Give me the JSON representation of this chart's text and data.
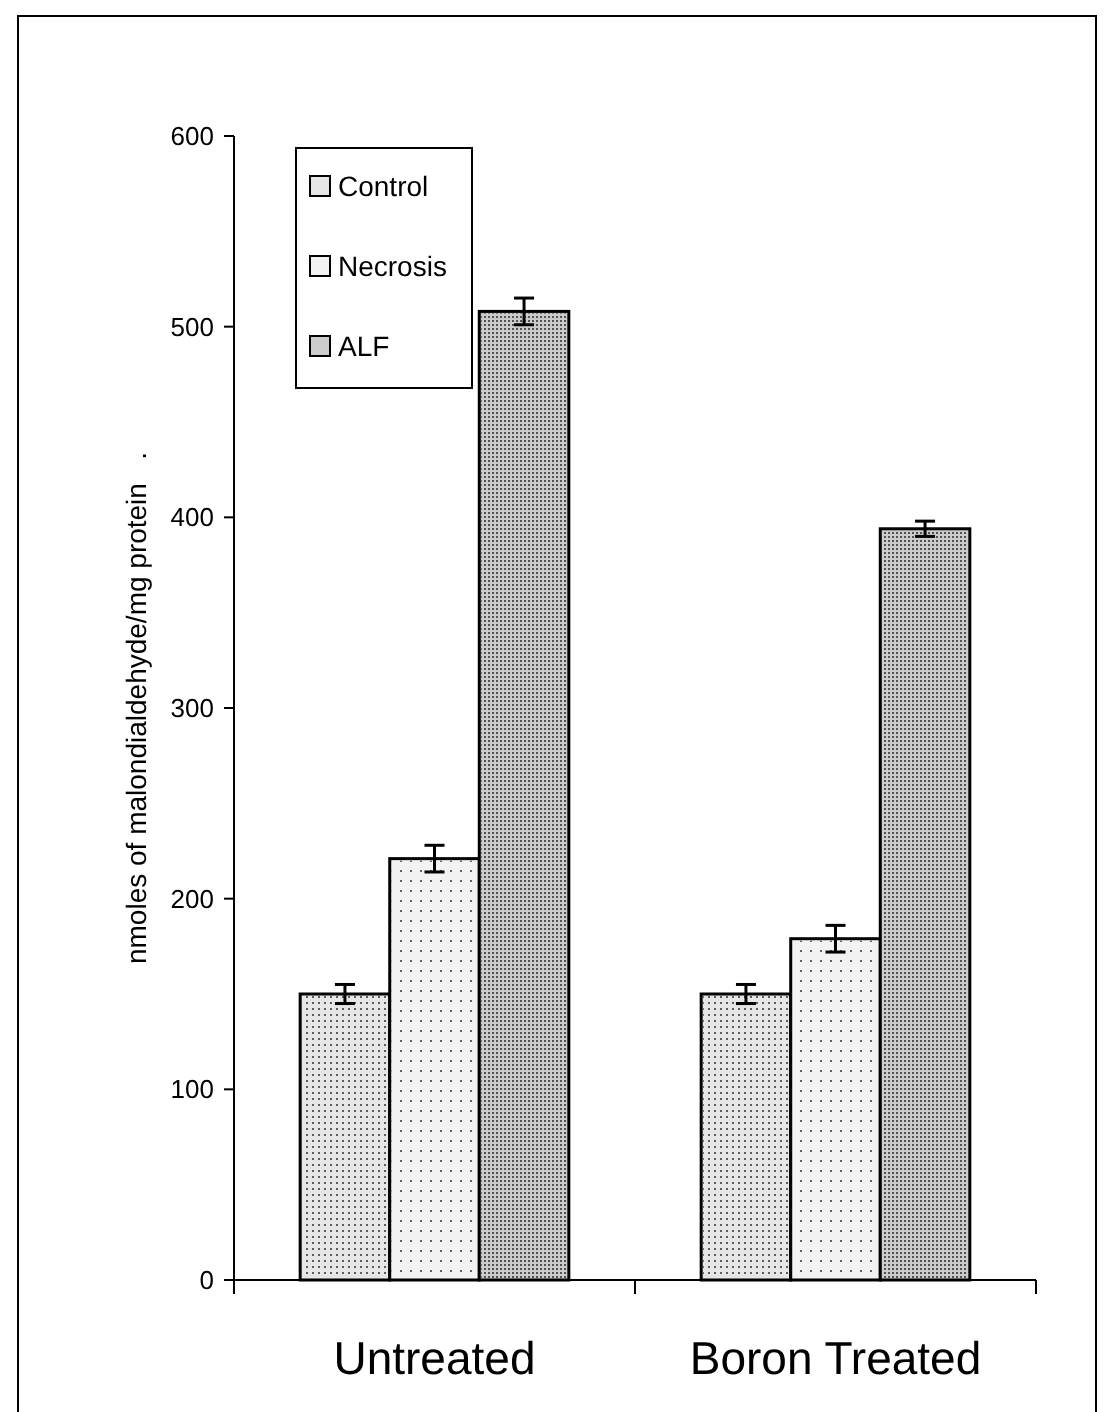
{
  "chart_data": {
    "type": "bar",
    "ylabel": "nmoles of malondialdehyde/mg protein   .",
    "categories": [
      "Untreated",
      "Boron Treated"
    ],
    "series": [
      {
        "name": "Control",
        "color": "#e6e6e6",
        "values": [
          150,
          150
        ],
        "errors": [
          5,
          5
        ]
      },
      {
        "name": "Necrosis",
        "color": "#f2f2f2",
        "values": [
          221,
          179
        ],
        "errors": [
          7,
          7
        ]
      },
      {
        "name": "ALF",
        "color": "#cccccc",
        "values": [
          508,
          394
        ],
        "errors": [
          7,
          4
        ]
      }
    ],
    "ylim": [
      0,
      600
    ],
    "yticks": [
      0,
      100,
      200,
      300,
      400,
      500,
      600
    ],
    "grid": false,
    "legend": "top left"
  }
}
